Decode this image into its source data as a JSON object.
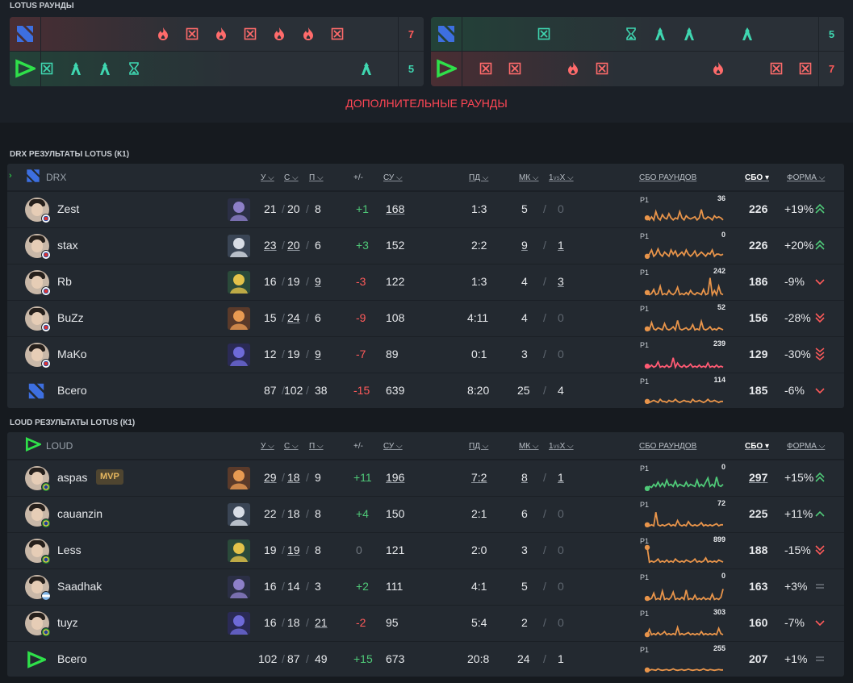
{
  "lotus": {
    "title": "LOTUS РАУНДЫ",
    "half1": {
      "top": {
        "team": "drx",
        "score": "7",
        "icons": [
          {
            "t": "flame",
            "c": "#ff6b6b",
            "x": 202
          },
          {
            "t": "x",
            "c": "#ff6b6b",
            "x": 238
          },
          {
            "t": "flame",
            "c": "#ff6b6b",
            "x": 274
          },
          {
            "t": "x",
            "c": "#ff6b6b",
            "x": 310
          },
          {
            "t": "flame",
            "c": "#ff6b6b",
            "x": 346
          },
          {
            "t": "flame",
            "c": "#ff6b6b",
            "x": 382
          },
          {
            "t": "x",
            "c": "#ff6b6b",
            "x": 418
          }
        ]
      },
      "bottom": {
        "team": "loud",
        "score": "5",
        "icons": [
          {
            "t": "x",
            "c": "#3fd6b0",
            "x": 58
          },
          {
            "t": "spike",
            "c": "#3fd6b0",
            "x": 94
          },
          {
            "t": "spike",
            "c": "#3fd6b0",
            "x": 130
          },
          {
            "t": "hourglass",
            "c": "#3fd6b0",
            "x": 166
          },
          {
            "t": "spike",
            "c": "#3fd6b0",
            "x": 454
          }
        ]
      }
    },
    "half2": {
      "top": {
        "team": "drx",
        "score": "5",
        "icons": [
          {
            "t": "x",
            "c": "#3fd6b0",
            "x": 130
          },
          {
            "t": "hourglass",
            "c": "#3fd6b0",
            "x": 238
          },
          {
            "t": "spike",
            "c": "#3fd6b0",
            "x": 274
          },
          {
            "t": "spike",
            "c": "#3fd6b0",
            "x": 310
          },
          {
            "t": "spike",
            "c": "#3fd6b0",
            "x": 382
          }
        ]
      },
      "bottom": {
        "team": "loud",
        "score": "7",
        "icons": [
          {
            "t": "x",
            "c": "#ff6b6b",
            "x": 58
          },
          {
            "t": "x",
            "c": "#ff6b6b",
            "x": 94
          },
          {
            "t": "flame",
            "c": "#ff6b6b",
            "x": 166
          },
          {
            "t": "x",
            "c": "#ff6b6b",
            "x": 202
          },
          {
            "t": "flame",
            "c": "#ff6b6b",
            "x": 346
          },
          {
            "t": "x",
            "c": "#ff6b6b",
            "x": 418
          },
          {
            "t": "x",
            "c": "#ff6b6b",
            "x": 454
          }
        ]
      }
    },
    "extra_rounds": "ДОПОЛНИТЕЛЬНЫЕ РАУНДЫ"
  },
  "headers": {
    "k": "У",
    "d": "С",
    "a": "П",
    "pm": "+/-",
    "adr": "СУ",
    "fk": "ПД",
    "mk": "МК",
    "clutch_a": "1",
    "clutch_b": "vs",
    "clutch_c": "X",
    "sbo_rounds": "СБО РАУНДОВ",
    "sbo": "СБО",
    "form": "ФОРМА"
  },
  "drx": {
    "title": "DRX РЕЗУЛЬТАТЫ LOTUS (К1)",
    "team": "DRX",
    "total_label": "Всего",
    "players": [
      {
        "name": "Zest",
        "agent": "omen",
        "k": "21",
        "d": "20",
        "a": "8",
        "pm": "+1",
        "pmc": "pos",
        "adr": "168",
        "fk": "1:3",
        "mk": "5",
        "cl": "0",
        "peak": "36",
        "pcol": "#e8944a",
        "sbo": "226",
        "form": "+19%",
        "arrow": "dup",
        "acol": "#4fc978",
        "spark": [
          0.3,
          0.2,
          0.35,
          0.2,
          0.6,
          0.3,
          0.2,
          0.45,
          0.3,
          0.25,
          0.5,
          0.3,
          0.2,
          0.3,
          0.25,
          0.6,
          0.3,
          0.2,
          0.4,
          0.3,
          0.25,
          0.3,
          0.35,
          0.2,
          0.3,
          0.7,
          0.3,
          0.25,
          0.35,
          0.3,
          0.2,
          0.4,
          0.3,
          0.35,
          0.3,
          0.2
        ]
      },
      {
        "name": "stax",
        "agent": "jett",
        "k": "23",
        "d": "20",
        "a": "6",
        "pm": "+3",
        "pmc": "pos",
        "adr": "152",
        "fk": "2:2",
        "mk": "9",
        "cl": "1",
        "peak": "0",
        "pcol": "#e8944a",
        "sbo": "226",
        "form": "+20%",
        "arrow": "dup",
        "acol": "#4fc978",
        "spark": [
          0.2,
          0.3,
          0.5,
          0.2,
          0.3,
          0.55,
          0.3,
          0.2,
          0.4,
          0.3,
          0.2,
          0.5,
          0.3,
          0.45,
          0.2,
          0.3,
          0.4,
          0.25,
          0.5,
          0.3,
          0.2,
          0.3,
          0.45,
          0.2,
          0.3,
          0.4,
          0.3,
          0.2,
          0.35,
          0.3,
          0.5,
          0.2,
          0.3,
          0.3,
          0.25,
          0.3
        ]
      },
      {
        "name": "Rb",
        "agent": "viper",
        "k": "16",
        "d": "19",
        "a": "9",
        "pm": "-3",
        "pmc": "neg",
        "adr": "122",
        "fk": "1:3",
        "mk": "4",
        "cl": "3",
        "peak": "242",
        "pcol": "#e8944a",
        "sbo": "186",
        "form": "-9%",
        "arrow": "down",
        "acol": "#ff5a5a",
        "spark": [
          0.2,
          0.1,
          0.15,
          0.35,
          0.1,
          0.15,
          0.5,
          0.1,
          0.15,
          0.1,
          0.3,
          0.15,
          0.1,
          0.2,
          0.45,
          0.1,
          0.15,
          0.1,
          0.2,
          0.1,
          0.3,
          0.15,
          0.1,
          0.2,
          0.15,
          0.1,
          0.35,
          0.1,
          0.15,
          0.9,
          0.1,
          0.3,
          0.1,
          0.5,
          0.15,
          0.1
        ]
      },
      {
        "name": "BuZz",
        "agent": "raze",
        "k": "15",
        "d": "24",
        "a": "6",
        "pm": "-9",
        "pmc": "neg",
        "adr": "108",
        "fk": "4:11",
        "mk": "4",
        "cl": "0",
        "peak": "52",
        "pcol": "#e8944a",
        "sbo": "156",
        "form": "-28%",
        "arrow": "ddown",
        "acol": "#ff5a5a",
        "spark": [
          0.2,
          0.15,
          0.5,
          0.2,
          0.15,
          0.25,
          0.2,
          0.15,
          0.45,
          0.2,
          0.15,
          0.2,
          0.3,
          0.15,
          0.6,
          0.2,
          0.15,
          0.2,
          0.25,
          0.15,
          0.2,
          0.4,
          0.15,
          0.2,
          0.15,
          0.55,
          0.2,
          0.15,
          0.2,
          0.3,
          0.15,
          0.2,
          0.15,
          0.25,
          0.2,
          0.15
        ]
      },
      {
        "name": "MaKo",
        "agent": "astra",
        "k": "12",
        "d": "19",
        "a": "9",
        "pm": "-7",
        "pmc": "neg",
        "adr": "89",
        "fk": "0:1",
        "mk": "3",
        "cl": "0",
        "peak": "239",
        "pcol": "#ff5a73",
        "sbo": "129",
        "form": "-30%",
        "arrow": "tdown",
        "acol": "#ff5a5a",
        "spark": [
          0.15,
          0.1,
          0.2,
          0.1,
          0.15,
          0.35,
          0.1,
          0.15,
          0.1,
          0.2,
          0.1,
          0.15,
          0.55,
          0.1,
          0.3,
          0.15,
          0.1,
          0.2,
          0.1,
          0.15,
          0.25,
          0.1,
          0.15,
          0.1,
          0.2,
          0.1,
          0.15,
          0.1,
          0.3,
          0.1,
          0.15,
          0.1,
          0.2,
          0.1,
          0.15,
          0.1
        ]
      }
    ],
    "total": {
      "k": "87",
      "d": "102",
      "a": "38",
      "pm": "-15",
      "pmc": "neg",
      "adr": "639",
      "fk": "8:20",
      "mk": "25",
      "cl": "4",
      "peak": "114",
      "pcol": "#e8944a",
      "sbo": "185",
      "form": "-6%",
      "arrow": "down",
      "acol": "#ff5a5a",
      "spark": [
        0.2,
        0.15,
        0.2,
        0.25,
        0.2,
        0.15,
        0.3,
        0.2,
        0.2,
        0.15,
        0.25,
        0.2,
        0.2,
        0.3,
        0.2,
        0.15,
        0.2,
        0.25,
        0.2,
        0.2,
        0.15,
        0.3,
        0.2,
        0.2,
        0.25,
        0.2,
        0.15,
        0.2,
        0.3,
        0.2,
        0.2,
        0.25,
        0.2,
        0.15,
        0.2,
        0.2
      ]
    }
  },
  "loud": {
    "title": "LOUD РЕЗУЛЬТАТЫ LOTUS (К1)",
    "team": "LOUD",
    "total_label": "Всего",
    "players": [
      {
        "name": "aspas",
        "mvp": "MVP",
        "agent": "raze",
        "k": "29",
        "d": "18",
        "a": "9",
        "pm": "+11",
        "pmc": "pos",
        "adr": "196",
        "fk": "7:2",
        "mk": "8",
        "cl": "1",
        "peak": "0",
        "pcol": "#4fc978",
        "sbo": "297",
        "form": "+15%",
        "arrow": "dup",
        "acol": "#4fc978",
        "spark": [
          0.2,
          0.3,
          0.25,
          0.4,
          0.3,
          0.5,
          0.3,
          0.45,
          0.3,
          0.6,
          0.35,
          0.4,
          0.3,
          0.55,
          0.3,
          0.4,
          0.35,
          0.3,
          0.5,
          0.3,
          0.4,
          0.35,
          0.3,
          0.6,
          0.3,
          0.4,
          0.3,
          0.5,
          0.7,
          0.3,
          0.4,
          0.3,
          0.75,
          0.35,
          0.3,
          0.4
        ]
      },
      {
        "name": "cauanzin",
        "agent": "jett",
        "k": "22",
        "d": "18",
        "a": "8",
        "pm": "+4",
        "pmc": "pos",
        "adr": "150",
        "fk": "2:1",
        "mk": "6",
        "cl": "0",
        "peak": "72",
        "pcol": "#e8944a",
        "sbo": "225",
        "form": "+11%",
        "arrow": "up",
        "acol": "#4fc978",
        "spark": [
          0.2,
          0.15,
          0.2,
          0.15,
          0.8,
          0.2,
          0.15,
          0.2,
          0.15,
          0.2,
          0.25,
          0.15,
          0.2,
          0.15,
          0.4,
          0.2,
          0.15,
          0.2,
          0.15,
          0.35,
          0.2,
          0.15,
          0.2,
          0.15,
          0.2,
          0.3,
          0.15,
          0.2,
          0.15,
          0.2,
          0.15,
          0.2,
          0.25,
          0.15,
          0.2,
          0.2
        ]
      },
      {
        "name": "Less",
        "agent": "viper",
        "k": "19",
        "d": "19",
        "a": "8",
        "pm": "0",
        "pmc": "zero",
        "adr": "121",
        "fk": "2:0",
        "mk": "3",
        "cl": "0",
        "peak": "899",
        "pcol": "#e8944a",
        "sbo": "188",
        "form": "-15%",
        "arrow": "ddown",
        "acol": "#ff5a5a",
        "spark": [
          0.85,
          0.15,
          0.2,
          0.15,
          0.2,
          0.3,
          0.15,
          0.2,
          0.15,
          0.25,
          0.15,
          0.2,
          0.15,
          0.3,
          0.2,
          0.15,
          0.2,
          0.15,
          0.25,
          0.2,
          0.15,
          0.2,
          0.3,
          0.15,
          0.2,
          0.15,
          0.2,
          0.35,
          0.15,
          0.2,
          0.15,
          0.2,
          0.15,
          0.25,
          0.2,
          0.15
        ]
      },
      {
        "name": "Saadhak",
        "agent": "omen",
        "k": "16",
        "d": "14",
        "a": "3",
        "pm": "+2",
        "pmc": "pos",
        "adr": "111",
        "fk": "4:1",
        "mk": "5",
        "cl": "0",
        "peak": "0",
        "pcol": "#e8944a",
        "sbo": "163",
        "form": "+3%",
        "arrow": "eq",
        "acol": "#6c737a",
        "spark": [
          0.15,
          0.1,
          0.15,
          0.4,
          0.1,
          0.15,
          0.1,
          0.5,
          0.1,
          0.15,
          0.1,
          0.2,
          0.45,
          0.1,
          0.15,
          0.1,
          0.2,
          0.1,
          0.55,
          0.1,
          0.15,
          0.1,
          0.3,
          0.1,
          0.15,
          0.1,
          0.2,
          0.1,
          0.15,
          0.1,
          0.35,
          0.1,
          0.15,
          0.1,
          0.2,
          0.6
        ]
      },
      {
        "name": "tuyz",
        "agent": "astra",
        "k": "16",
        "d": "18",
        "a": "21",
        "pm": "-2",
        "pmc": "neg",
        "adr": "95",
        "fk": "5:4",
        "mk": "2",
        "cl": "0",
        "peak": "303",
        "pcol": "#e8944a",
        "sbo": "160",
        "form": "-7%",
        "arrow": "down",
        "acol": "#ff5a5a",
        "spark": [
          0.15,
          0.4,
          0.15,
          0.2,
          0.15,
          0.25,
          0.15,
          0.2,
          0.3,
          0.15,
          0.2,
          0.15,
          0.2,
          0.15,
          0.5,
          0.15,
          0.2,
          0.15,
          0.2,
          0.25,
          0.15,
          0.2,
          0.15,
          0.2,
          0.15,
          0.3,
          0.15,
          0.2,
          0.15,
          0.2,
          0.15,
          0.2,
          0.15,
          0.45,
          0.2,
          0.15
        ]
      }
    ],
    "total": {
      "k": "102",
      "d": "87",
      "a": "49",
      "pm": "+15",
      "pmc": "pos",
      "adr": "673",
      "fk": "20:8",
      "mk": "24",
      "cl": "1",
      "peak": "255",
      "pcol": "#e8944a",
      "sbo": "207",
      "form": "+1%",
      "arrow": "eq",
      "acol": "#6c737a",
      "spark": [
        0.2,
        0.18,
        0.22,
        0.2,
        0.18,
        0.25,
        0.2,
        0.18,
        0.2,
        0.22,
        0.18,
        0.2,
        0.25,
        0.2,
        0.18,
        0.2,
        0.22,
        0.18,
        0.2,
        0.24,
        0.2,
        0.18,
        0.2,
        0.22,
        0.18,
        0.2,
        0.25,
        0.2,
        0.18,
        0.22,
        0.2,
        0.18,
        0.2,
        0.22,
        0.2,
        0.2
      ]
    }
  },
  "r1": "Р1"
}
